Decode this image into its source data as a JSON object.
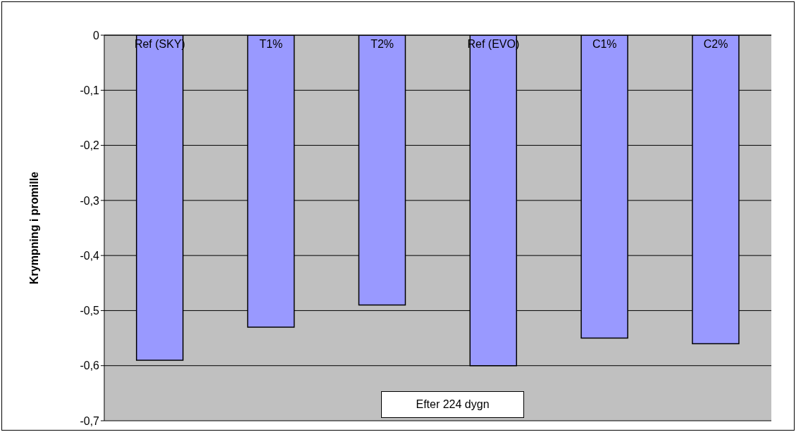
{
  "chart_data": {
    "type": "bar",
    "categories": [
      "Ref (SKY)",
      "T1%",
      "T2%",
      "Ref (EVO)",
      "C1%",
      "C2%"
    ],
    "values": [
      -0.59,
      -0.53,
      -0.49,
      -0.6,
      -0.55,
      -0.56
    ],
    "color": "#9999ff",
    "ylabel": "Krympning i promille",
    "ylim": [
      -0.7,
      0
    ],
    "yticks": [
      {
        "value": -0.7,
        "label": "-0,7"
      },
      {
        "value": -0.6,
        "label": "-0,6"
      },
      {
        "value": -0.5,
        "label": "-0,5"
      },
      {
        "value": -0.4,
        "label": "-0,4"
      },
      {
        "value": -0.3,
        "label": "-0,3"
      },
      {
        "value": -0.2,
        "label": "-0,2"
      },
      {
        "value": -0.1,
        "label": "-0,1"
      },
      0
    ],
    "grid": "y",
    "annotations": [
      "Efter 224 dygn"
    ]
  }
}
